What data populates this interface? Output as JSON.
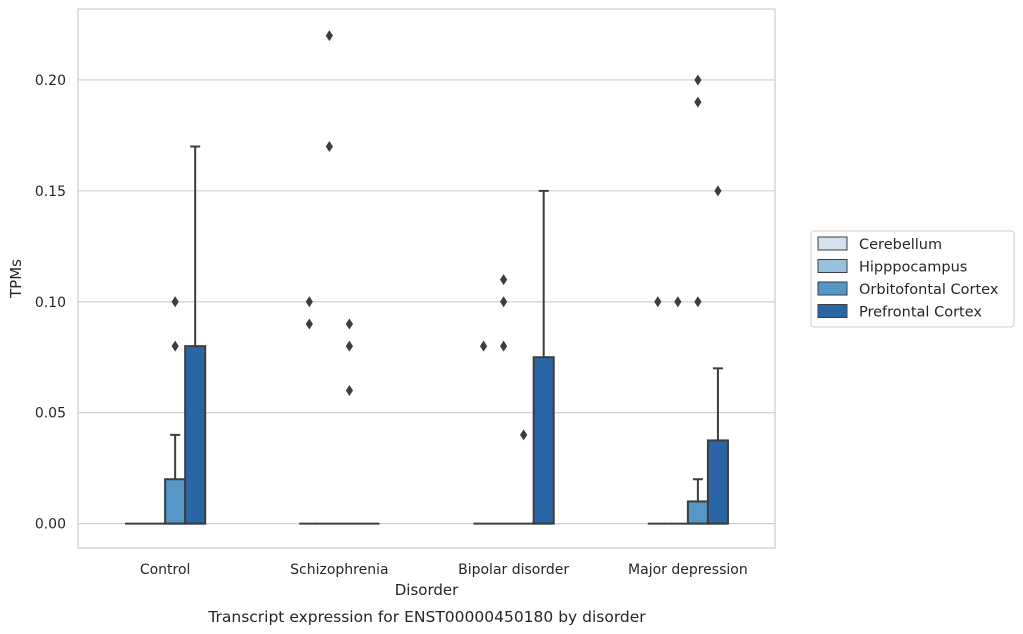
{
  "caption": "Transcript expression for ENST00000450180 by disorder",
  "chart_data": {
    "type": "boxplot",
    "title": "",
    "xlabel": "Disorder",
    "ylabel": "TPMs",
    "ylim": [
      -0.011,
      0.232
    ],
    "yticks": [
      "0.00",
      "0.05",
      "0.10",
      "0.15",
      "0.20"
    ],
    "grid": "horizontal",
    "legend_position": "right",
    "categories": [
      "Control",
      "Schizophrenia",
      "Bipolar disorder",
      "Major depression"
    ],
    "series": [
      {
        "name": "Cerebellum",
        "color": "#d4e2f0",
        "boxes": [
          {
            "q1": 0,
            "median": 0,
            "q3": 0,
            "whisker_low": 0,
            "whisker_high": 0,
            "outliers": []
          },
          {
            "q1": 0,
            "median": 0,
            "q3": 0,
            "whisker_low": 0,
            "whisker_high": 0,
            "outliers": [
              0.09,
              0.1
            ]
          },
          {
            "q1": 0,
            "median": 0,
            "q3": 0,
            "whisker_low": 0,
            "whisker_high": 0,
            "outliers": [
              0.08
            ]
          },
          {
            "q1": 0,
            "median": 0,
            "q3": 0,
            "whisker_low": 0,
            "whisker_high": 0,
            "outliers": [
              0.1
            ]
          }
        ]
      },
      {
        "name": "Hipppocampus",
        "color": "#9ac1dc",
        "boxes": [
          {
            "q1": 0,
            "median": 0,
            "q3": 0,
            "whisker_low": 0,
            "whisker_high": 0,
            "outliers": []
          },
          {
            "q1": 0,
            "median": 0,
            "q3": 0,
            "whisker_low": 0,
            "whisker_high": 0,
            "outliers": [
              0.17,
              0.22
            ]
          },
          {
            "q1": 0,
            "median": 0,
            "q3": 0,
            "whisker_low": 0,
            "whisker_high": 0,
            "outliers": [
              0.08,
              0.1,
              0.11
            ]
          },
          {
            "q1": 0,
            "median": 0,
            "q3": 0,
            "whisker_low": 0,
            "whisker_high": 0,
            "outliers": [
              0.1
            ]
          }
        ]
      },
      {
        "name": "Orbitofontal Cortex",
        "color": "#5597c6",
        "boxes": [
          {
            "q1": 0,
            "median": 0,
            "q3": 0.02,
            "whisker_low": 0,
            "whisker_high": 0.04,
            "outliers": [
              0.08,
              0.1
            ]
          },
          {
            "q1": 0,
            "median": 0,
            "q3": 0,
            "whisker_low": 0,
            "whisker_high": 0,
            "outliers": [
              0.06,
              0.08,
              0.09
            ]
          },
          {
            "q1": 0,
            "median": 0,
            "q3": 0,
            "whisker_low": 0,
            "whisker_high": 0,
            "outliers": [
              0.04
            ]
          },
          {
            "q1": 0,
            "median": 0,
            "q3": 0.01,
            "whisker_low": 0,
            "whisker_high": 0.02,
            "outliers": [
              0.1,
              0.19,
              0.2
            ]
          }
        ]
      },
      {
        "name": "Prefrontal Cortex",
        "color": "#2a66a6",
        "boxes": [
          {
            "q1": 0,
            "median": 0,
            "q3": 0.08,
            "whisker_low": 0,
            "whisker_high": 0.17,
            "outliers": []
          },
          {
            "q1": 0,
            "median": 0,
            "q3": 0,
            "whisker_low": 0,
            "whisker_high": 0,
            "outliers": []
          },
          {
            "q1": 0,
            "median": 0,
            "q3": 0.075,
            "whisker_low": 0,
            "whisker_high": 0.15,
            "outliers": []
          },
          {
            "q1": 0,
            "median": 0,
            "q3": 0.0375,
            "whisker_low": 0,
            "whisker_high": 0.07,
            "outliers": [
              0.15
            ]
          }
        ]
      }
    ]
  }
}
